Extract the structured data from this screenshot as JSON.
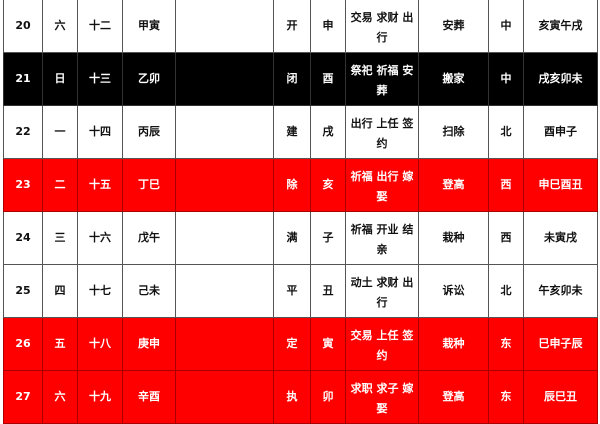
{
  "colors": {
    "black_row": "#000000",
    "red_row": "#ff0000",
    "white_row": "#ffffff"
  },
  "rows": [
    {
      "style": "white",
      "day": "20",
      "weekday": "六",
      "lunar": "十二",
      "ganzhi": "甲寅",
      "blank": "",
      "officer": "开",
      "branch": "申",
      "yi": "交易 求财 出行",
      "ji": "安葬",
      "direction": "中",
      "hours": "亥寅午戌"
    },
    {
      "style": "black",
      "day": "21",
      "weekday": "日",
      "lunar": "十三",
      "ganzhi": "乙卯",
      "blank": "",
      "officer": "闭",
      "branch": "酉",
      "yi": "祭祀 祈福 安葬",
      "ji": "搬家",
      "direction": "中",
      "hours": "戌亥卯未"
    },
    {
      "style": "white",
      "day": "22",
      "weekday": "一",
      "lunar": "十四",
      "ganzhi": "丙辰",
      "blank": "",
      "officer": "建",
      "branch": "戌",
      "yi": "出行 上任 签约",
      "ji": "扫除",
      "direction": "北",
      "hours": "酉申子"
    },
    {
      "style": "red",
      "day": "23",
      "weekday": "二",
      "lunar": "十五",
      "ganzhi": "丁巳",
      "blank": "",
      "officer": "除",
      "branch": "亥",
      "yi": "祈福 出行 嫁娶",
      "ji": "登高",
      "direction": "西",
      "hours": "申巳酉丑"
    },
    {
      "style": "white",
      "day": "24",
      "weekday": "三",
      "lunar": "十六",
      "ganzhi": "戊午",
      "blank": "",
      "officer": "满",
      "branch": "子",
      "yi": "祈福 开业 结亲",
      "ji": "栽种",
      "direction": "西",
      "hours": "未寅戌"
    },
    {
      "style": "white",
      "day": "25",
      "weekday": "四",
      "lunar": "十七",
      "ganzhi": "己未",
      "blank": "",
      "officer": "平",
      "branch": "丑",
      "yi": "动土 求财 出行",
      "ji": "诉讼",
      "direction": "北",
      "hours": "午亥卯未"
    },
    {
      "style": "red",
      "day": "26",
      "weekday": "五",
      "lunar": "十八",
      "ganzhi": "庚申",
      "blank": "",
      "officer": "定",
      "branch": "寅",
      "yi": "交易 上任 签约",
      "ji": "栽种",
      "direction": "东",
      "hours": "巳申子辰"
    },
    {
      "style": "red",
      "day": "27",
      "weekday": "六",
      "lunar": "十九",
      "ganzhi": "辛酉",
      "blank": "",
      "officer": "执",
      "branch": "卯",
      "yi": "求职 求子 嫁娶",
      "ji": "登高",
      "direction": "东",
      "hours": "辰巳丑"
    }
  ]
}
